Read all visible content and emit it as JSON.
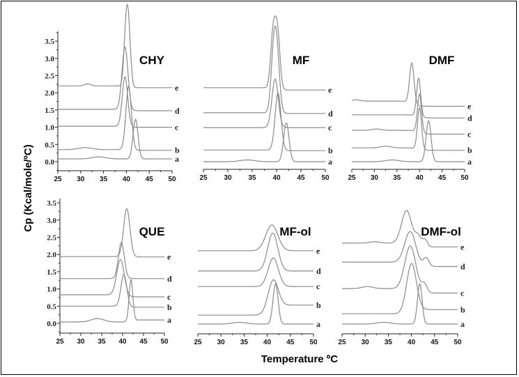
{
  "chart_data": {
    "type": "line",
    "ylabel": "Cp (Kcal/mole/ºC)",
    "xlabel": "Temperature ºC",
    "xlim": [
      25,
      50
    ],
    "ylim": [
      0,
      3.5
    ],
    "xticks": [
      "25",
      "30",
      "35",
      "40",
      "45",
      "50"
    ],
    "yticks": [
      "0.0",
      "0.5",
      "1.0",
      "1.5",
      "2.0",
      "2.5",
      "3.0",
      "3.5"
    ],
    "curve_color": "#8a8a8a",
    "panels": [
      {
        "title": "CHY",
        "show_yaxis": true,
        "series": [
          {
            "name": "a",
            "base": [
              0.08,
              0.08
            ],
            "peaks": [
              [
                42,
                1.15,
                0.55
              ],
              [
                34,
                0.06,
                1.5
              ]
            ]
          },
          {
            "name": "b",
            "base": [
              0.35,
              0.33
            ],
            "peaks": [
              [
                40.5,
                1.85,
                0.6
              ],
              [
                31,
                0.06,
                1.5
              ]
            ]
          },
          {
            "name": "c",
            "base": [
              1.03,
              1.0
            ],
            "peaks": [
              [
                39.7,
                1.45,
                0.6
              ]
            ]
          },
          {
            "name": "d",
            "base": [
              1.52,
              1.48
            ],
            "peaks": [
              [
                39.7,
                1.83,
                0.65
              ]
            ]
          },
          {
            "name": "e",
            "base": [
              2.2,
              2.15
            ],
            "peaks": [
              [
                39.9,
                1.5,
                0.45
              ],
              [
                40.5,
                1.5,
                0.45
              ],
              [
                31.5,
                0.06,
                0.7
              ]
            ]
          }
        ]
      },
      {
        "title": "MF",
        "show_yaxis": false,
        "series": [
          {
            "name": "a",
            "base": [
              0.0,
              0.0
            ],
            "peaks": [
              [
                42,
                1.13,
                0.55
              ],
              [
                34,
                0.05,
                1.5
              ]
            ]
          },
          {
            "name": "b",
            "base": [
              0.34,
              0.32
            ],
            "peaks": [
              [
                40.3,
                1.66,
                0.6
              ]
            ]
          },
          {
            "name": "c",
            "base": [
              0.99,
              0.99
            ],
            "peaks": [
              [
                39.7,
                1.41,
                0.65
              ]
            ]
          },
          {
            "name": "d",
            "base": [
              1.42,
              1.4
            ],
            "peaks": [
              [
                39.4,
                1.6,
                0.55
              ],
              [
                40.1,
                1.5,
                0.55
              ]
            ]
          },
          {
            "name": "e",
            "base": [
              2.15,
              2.08
            ],
            "peaks": [
              [
                39.3,
                1.6,
                0.5
              ],
              [
                40.2,
                1.6,
                0.5
              ]
            ]
          }
        ]
      },
      {
        "title": "DMF",
        "show_yaxis": false,
        "series": [
          {
            "name": "a",
            "base": [
              0.0,
              0.0
            ],
            "peaks": [
              [
                42,
                1.19,
                0.55
              ],
              [
                34,
                0.05,
                1.5
              ]
            ]
          },
          {
            "name": "b",
            "base": [
              0.4,
              0.33
            ],
            "peaks": [
              [
                40,
                1.2,
                0.45
              ],
              [
                32.5,
                0.05,
                1.2
              ]
            ]
          },
          {
            "name": "c",
            "base": [
              0.91,
              0.8
            ],
            "peaks": [
              [
                40,
                1.11,
                0.45
              ],
              [
                30.5,
                0.04,
                1
              ]
            ]
          },
          {
            "name": "d",
            "base": [
              1.36,
              1.27
            ],
            "peaks": [
              [
                39.8,
                1.11,
                0.45
              ]
            ]
          },
          {
            "name": "e",
            "base": [
              1.76,
              1.61
            ],
            "peaks": [
              [
                38.3,
                1.18,
                0.5
              ],
              [
                26,
                0.04,
                0.8
              ]
            ]
          }
        ]
      },
      {
        "title": "QUE",
        "show_yaxis": true,
        "series": [
          {
            "name": "a",
            "base": [
              0.04,
              0.1
            ],
            "peaks": [
              [
                42,
                1.2,
                0.45
              ],
              [
                34,
                0.1,
                1.5
              ]
            ]
          },
          {
            "name": "b",
            "base": [
              0.5,
              0.47
            ],
            "peaks": [
              [
                40.3,
                0.93,
                0.7
              ]
            ]
          },
          {
            "name": "c",
            "base": [
              0.83,
              0.77
            ],
            "peaks": [
              [
                39.5,
                1.05,
                0.9
              ]
            ]
          },
          {
            "name": "d",
            "base": [
              1.3,
              1.3
            ],
            "peaks": [
              [
                39.7,
                1.05,
                0.7
              ]
            ]
          },
          {
            "name": "e",
            "base": [
              1.94,
              1.93
            ],
            "peaks": [
              [
                41,
                1.4,
                0.75
              ]
            ]
          }
        ]
      },
      {
        "title": "MF-ol",
        "show_yaxis": false,
        "series": [
          {
            "name": "a",
            "base": [
              0.0,
              0.0
            ],
            "peaks": [
              [
                41.8,
                1.17,
                0.55
              ],
              [
                34,
                0.05,
                1.5
              ]
            ]
          },
          {
            "name": "b",
            "base": [
              0.26,
              0.55
            ],
            "peaks": [
              [
                41.2,
                0.87,
                1.1
              ]
            ]
          },
          {
            "name": "c",
            "base": [
              1.09,
              1.09
            ],
            "peaks": [
              [
                41.3,
                0.83,
                1.1
              ]
            ]
          },
          {
            "name": "d",
            "base": [
              1.54,
              1.54
            ],
            "peaks": [
              [
                41.2,
                1.1,
                1.1
              ]
            ]
          },
          {
            "name": "e",
            "base": [
              2.13,
              2.13
            ],
            "peaks": [
              [
                41,
                0.75,
                1.3
              ]
            ]
          }
        ]
      },
      {
        "title": "DMF-ol",
        "show_yaxis": false,
        "series": [
          {
            "name": "a",
            "base": [
              0.0,
              0.0
            ],
            "peaks": [
              [
                41.8,
                1.17,
                0.5
              ],
              [
                34,
                0.05,
                1.5
              ]
            ]
          },
          {
            "name": "b",
            "base": [
              0.3,
              0.42
            ],
            "peaks": [
              [
                40,
                1.4,
                1.05
              ]
            ]
          },
          {
            "name": "c",
            "base": [
              1.03,
              0.9
            ],
            "peaks": [
              [
                39.8,
                1.3,
                1.2
              ],
              [
                42.8,
                0.25,
                0.6
              ],
              [
                30.5,
                0.06,
                1.2
              ]
            ]
          },
          {
            "name": "d",
            "base": [
              1.8,
              1.67
            ],
            "peaks": [
              [
                39.8,
                0.95,
                1.2
              ],
              [
                43.2,
                0.25,
                0.6
              ]
            ]
          },
          {
            "name": "e",
            "base": [
              2.35,
              2.24
            ],
            "peaks": [
              [
                39,
                1.0,
                1.1
              ],
              [
                41.5,
                0.3,
                0.7
              ],
              [
                43,
                0.2,
                0.5
              ],
              [
                32,
                0.04,
                1.2
              ]
            ]
          }
        ]
      }
    ]
  }
}
